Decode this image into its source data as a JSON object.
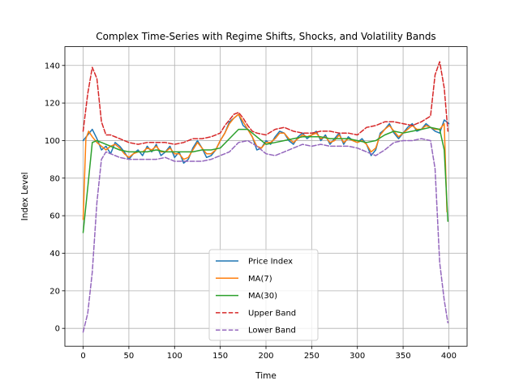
{
  "chart_data": {
    "type": "line",
    "title": "Complex Time-Series with Regime Shifts, Shocks, and Volatility Bands",
    "xlabel": "Time",
    "ylabel": "Index Level",
    "xlim": [
      -20,
      420
    ],
    "ylim": [
      -9.5,
      150
    ],
    "xticks": [
      0,
      50,
      100,
      150,
      200,
      250,
      300,
      350,
      400
    ],
    "yticks": [
      0,
      20,
      40,
      60,
      80,
      100,
      120,
      140
    ],
    "grid": true,
    "legend_position": "lower-center",
    "series": [
      {
        "name": "Price Index",
        "color": "#1f77b4",
        "dash": "solid",
        "x": [
          0,
          5,
          10,
          15,
          20,
          25,
          30,
          35,
          40,
          45,
          50,
          55,
          60,
          65,
          70,
          75,
          80,
          85,
          90,
          95,
          100,
          105,
          110,
          115,
          120,
          125,
          130,
          135,
          140,
          145,
          150,
          155,
          160,
          165,
          170,
          175,
          180,
          185,
          190,
          195,
          200,
          205,
          210,
          215,
          220,
          225,
          230,
          235,
          240,
          245,
          250,
          255,
          260,
          265,
          270,
          275,
          280,
          285,
          290,
          295,
          300,
          305,
          310,
          315,
          320,
          325,
          330,
          335,
          340,
          345,
          350,
          355,
          360,
          365,
          370,
          375,
          380,
          385,
          390,
          395,
          400
        ],
        "values": [
          100,
          103,
          106,
          101,
          95,
          97,
          93,
          99,
          97,
          94,
          90,
          93,
          95,
          92,
          97,
          94,
          98,
          92,
          94,
          97,
          91,
          94,
          88,
          90,
          96,
          100,
          96,
          91,
          92,
          95,
          100,
          104,
          110,
          112,
          114,
          108,
          106,
          102,
          95,
          96,
          100,
          98,
          102,
          105,
          104,
          100,
          98,
          102,
          104,
          101,
          103,
          105,
          100,
          103,
          98,
          101,
          104,
          98,
          102,
          100,
          99,
          101,
          98,
          92,
          95,
          104,
          106,
          109,
          104,
          101,
          104,
          107,
          109,
          105,
          106,
          109,
          107,
          105,
          104,
          111,
          109
        ]
      },
      {
        "name": "MA(7)",
        "color": "#ff7f0e",
        "dash": "solid",
        "x": [
          0,
          3,
          6,
          10,
          15,
          20,
          25,
          30,
          35,
          40,
          45,
          50,
          55,
          60,
          65,
          70,
          75,
          80,
          85,
          90,
          95,
          100,
          105,
          110,
          115,
          120,
          125,
          130,
          135,
          140,
          145,
          150,
          155,
          160,
          165,
          170,
          175,
          180,
          185,
          190,
          195,
          200,
          205,
          210,
          215,
          220,
          225,
          230,
          235,
          240,
          245,
          250,
          255,
          260,
          265,
          270,
          275,
          280,
          285,
          290,
          295,
          300,
          305,
          310,
          315,
          320,
          325,
          330,
          335,
          340,
          345,
          350,
          355,
          360,
          365,
          370,
          375,
          380,
          385,
          390,
          395,
          398
        ],
        "values": [
          58,
          101,
          105,
          102,
          99,
          97,
          95,
          97,
          98,
          96,
          93,
          91,
          93,
          94,
          94,
          96,
          95,
          97,
          94,
          94,
          96,
          93,
          93,
          90,
          91,
          95,
          99,
          96,
          93,
          93,
          95,
          100,
          104,
          109,
          112,
          114,
          110,
          106,
          102,
          97,
          96,
          99,
          99,
          101,
          104,
          104,
          101,
          99,
          101,
          103,
          102,
          103,
          104,
          101,
          102,
          99,
          100,
          103,
          99,
          101,
          100,
          99,
          100,
          98,
          94,
          96,
          103,
          106,
          108,
          105,
          102,
          104,
          106,
          108,
          106,
          106,
          108,
          107,
          106,
          106,
          109,
          62
        ]
      },
      {
        "name": "MA(30)",
        "color": "#2ca02c",
        "dash": "solid",
        "x": [
          0,
          5,
          10,
          15,
          20,
          30,
          40,
          50,
          60,
          70,
          80,
          90,
          100,
          110,
          120,
          130,
          140,
          150,
          160,
          170,
          180,
          190,
          200,
          210,
          220,
          230,
          240,
          250,
          260,
          270,
          280,
          290,
          300,
          310,
          320,
          330,
          340,
          350,
          360,
          370,
          380,
          390,
          395,
          399
        ],
        "values": [
          51,
          75,
          99,
          100,
          99,
          97,
          95,
          94,
          94,
          94,
          95,
          94,
          94,
          94,
          94,
          95,
          95,
          96,
          101,
          106,
          106,
          102,
          98,
          99,
          100,
          101,
          102,
          102,
          102,
          101,
          101,
          101,
          100,
          99,
          100,
          103,
          105,
          104,
          105,
          106,
          107,
          106,
          95,
          57
        ]
      },
      {
        "name": "Upper Band",
        "color": "#d62728",
        "dash": "dashed",
        "x": [
          0,
          5,
          10,
          15,
          20,
          25,
          30,
          40,
          50,
          60,
          70,
          80,
          90,
          100,
          110,
          120,
          130,
          140,
          150,
          155,
          160,
          165,
          170,
          175,
          180,
          185,
          190,
          200,
          210,
          220,
          230,
          240,
          250,
          260,
          270,
          280,
          290,
          300,
          310,
          320,
          330,
          340,
          350,
          360,
          370,
          380,
          385,
          390,
          395,
          399
        ],
        "values": [
          105,
          125,
          139,
          133,
          110,
          103,
          103,
          101,
          99,
          98,
          99,
          99,
          99,
          98,
          99,
          101,
          101,
          102,
          104,
          108,
          111,
          114,
          115,
          112,
          108,
          105,
          104,
          103,
          106,
          107,
          105,
          104,
          104,
          105,
          105,
          104,
          104,
          103,
          107,
          108,
          110,
          110,
          109,
          108,
          110,
          113,
          135,
          142,
          128,
          105
        ]
      },
      {
        "name": "Lower Band",
        "color": "#9467bd",
        "dash": "dashed",
        "x": [
          0,
          5,
          10,
          15,
          20,
          25,
          30,
          40,
          50,
          60,
          70,
          80,
          90,
          100,
          110,
          120,
          130,
          140,
          150,
          160,
          170,
          180,
          190,
          200,
          210,
          220,
          230,
          240,
          250,
          260,
          270,
          280,
          290,
          300,
          310,
          320,
          330,
          340,
          350,
          360,
          370,
          380,
          385,
          390,
          395,
          399
        ],
        "values": [
          -2,
          8,
          30,
          67,
          90,
          94,
          93,
          91,
          90,
          90,
          90,
          90,
          91,
          89,
          89,
          89,
          89,
          90,
          92,
          94,
          99,
          100,
          97,
          93,
          92,
          94,
          96,
          98,
          97,
          98,
          97,
          97,
          97,
          96,
          94,
          92,
          95,
          99,
          100,
          100,
          101,
          100,
          85,
          35,
          15,
          3
        ]
      }
    ]
  }
}
